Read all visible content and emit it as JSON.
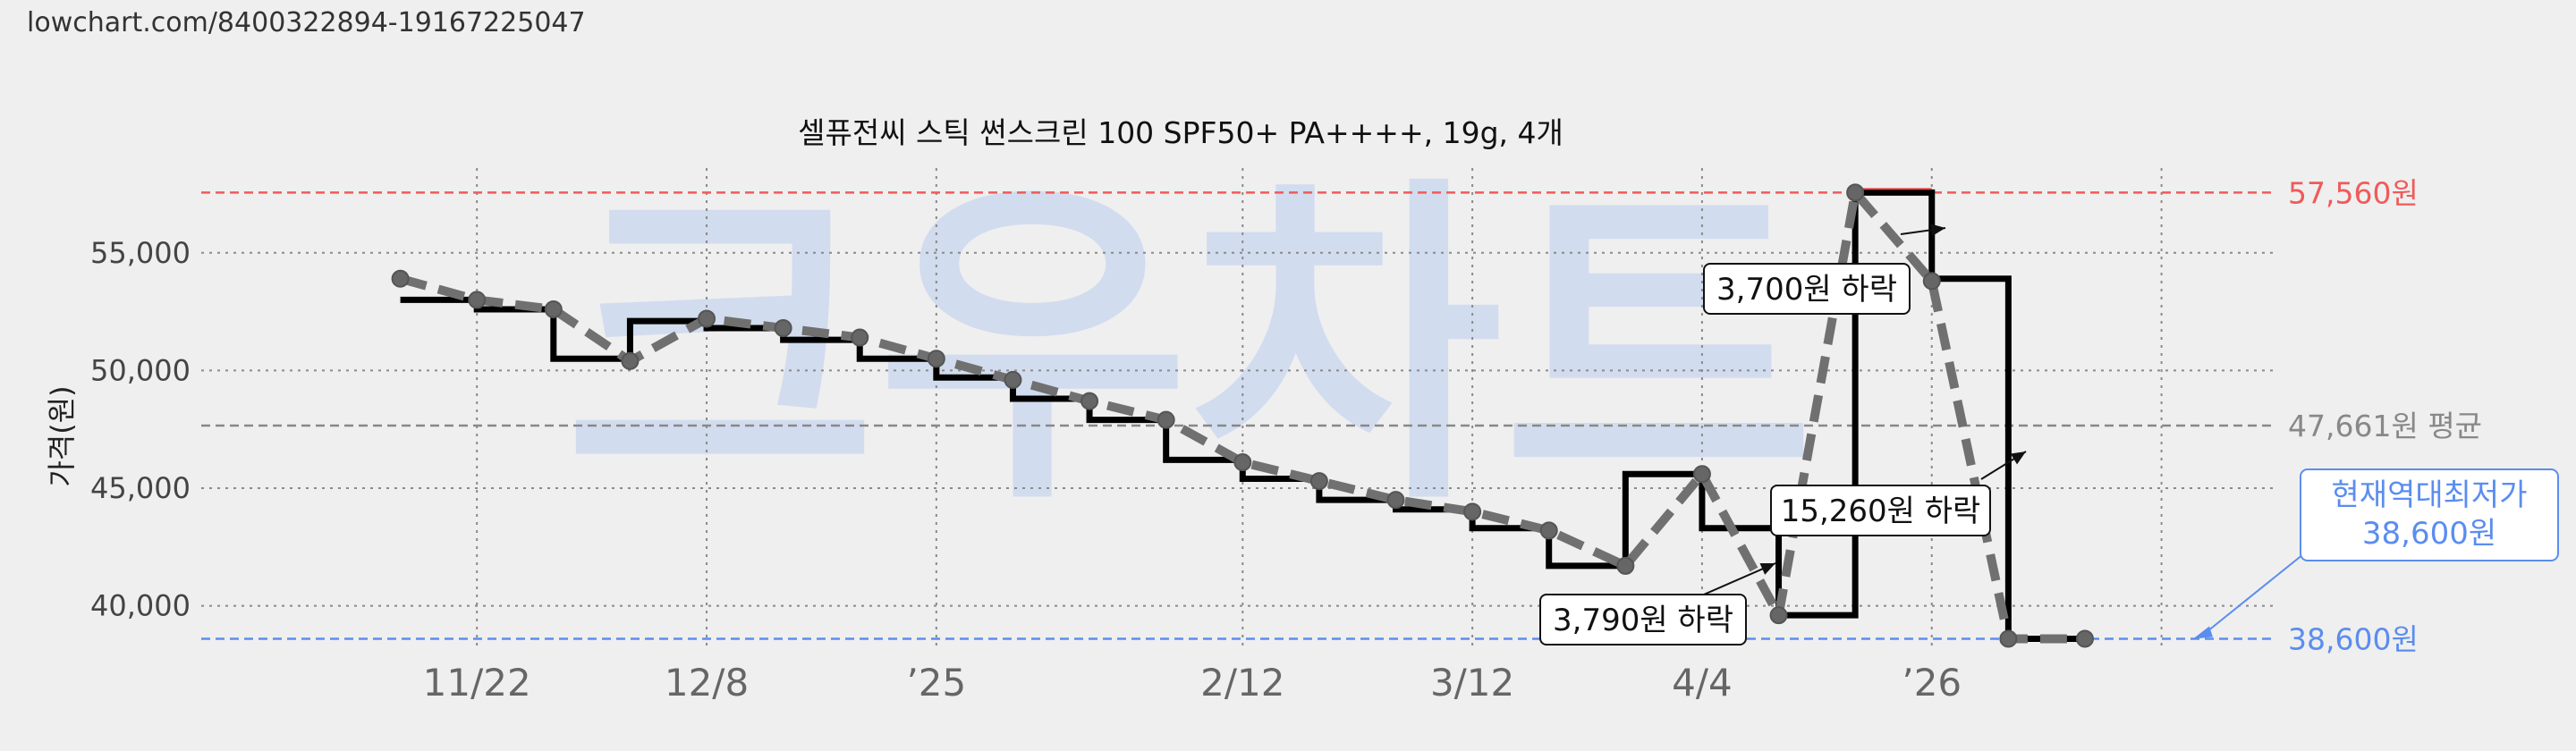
{
  "page": {
    "url_text": "lowchart.com/8400322894-19167225047"
  },
  "chart_data": {
    "type": "line",
    "title": "셀퓨전씨 스틱 썬스크린 100 SPF50+ PA++++, 19g, 4개",
    "ylabel": "가격(원)",
    "ylim": [
      38200,
      58600
    ],
    "yticks": [
      40000,
      45000,
      50000,
      55000
    ],
    "ytick_labels": [
      "40,000",
      "45,000",
      "50,000",
      "55,000"
    ],
    "xlim": [
      -2.6,
      24.5
    ],
    "xticks": [
      1,
      4,
      7,
      11,
      14,
      17,
      20,
      23
    ],
    "xtick_labels": [
      "11/22",
      "12/8",
      "’25",
      "2/12",
      "3/12",
      "4/4",
      "’26",
      ""
    ],
    "grid": true,
    "watermark": "크우차트",
    "series": [
      {
        "style": "solid-step",
        "color": "#000000",
        "x": [
          0,
          1,
          2,
          3,
          4,
          5,
          6,
          7,
          8,
          9,
          10,
          11,
          12,
          13,
          14,
          15,
          16,
          17,
          18,
          19,
          20,
          21,
          22
        ],
        "values": [
          53000,
          52600,
          50500,
          52100,
          51800,
          51300,
          50500,
          49700,
          48800,
          47900,
          46200,
          45400,
          44500,
          44100,
          43300,
          41700,
          45600,
          43300,
          39600,
          57560,
          53900,
          38600,
          38600
        ]
      },
      {
        "style": "dashed-markers",
        "color": "#707070",
        "x": [
          0,
          1,
          2,
          3,
          4,
          5,
          6,
          7,
          8,
          9,
          10,
          11,
          12,
          13,
          14,
          15,
          16,
          17,
          18,
          19,
          20,
          21,
          22
        ],
        "values": [
          53900,
          53000,
          52600,
          50400,
          52200,
          51800,
          51400,
          50500,
          49600,
          48700,
          47900,
          46100,
          45300,
          44500,
          44000,
          43200,
          41700,
          45600,
          39600,
          57560,
          53800,
          38600,
          38600
        ]
      }
    ],
    "reference_lines": [
      {
        "value": 57560,
        "label": "57,560원",
        "color": "#f05a5a"
      },
      {
        "value": 47661,
        "label": "47,661원 평균",
        "color": "#888888"
      },
      {
        "value": 38600,
        "label": "38,600원",
        "color": "#5b8def"
      }
    ],
    "annotations": [
      {
        "text": "3,700원 하락"
      },
      {
        "text": "15,260원 하락"
      },
      {
        "text": "3,790원 하락"
      }
    ],
    "current_low": {
      "line1": "현재역대최저가",
      "line2": "38,600원",
      "color": "#5b8def"
    }
  }
}
